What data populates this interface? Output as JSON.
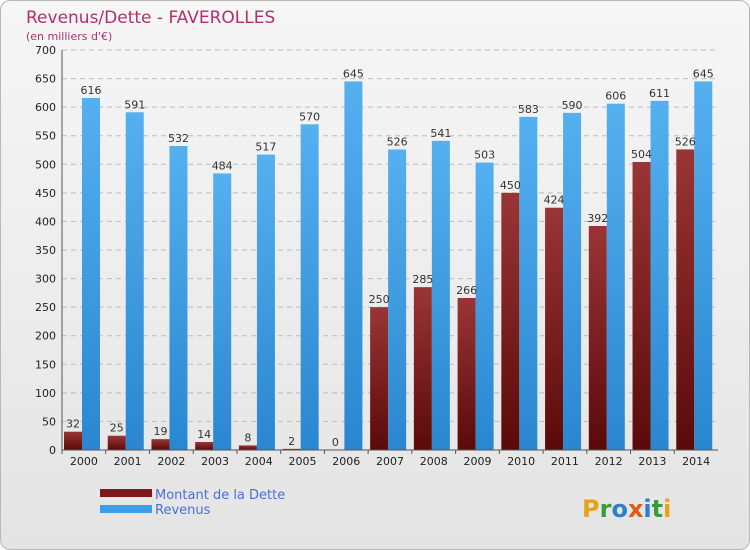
{
  "chart_data": {
    "type": "bar",
    "title": "Revenus/Dette - FAVEROLLES",
    "subtitle": "(en milliers d'€)",
    "categories": [
      "2000",
      "2001",
      "2002",
      "2003",
      "2004",
      "2005",
      "2006",
      "2007",
      "2008",
      "2009",
      "2010",
      "2011",
      "2012",
      "2013",
      "2014"
    ],
    "series": [
      {
        "name": "Montant de la Dette",
        "color": "#7a1a1a",
        "values": [
          32,
          25,
          19,
          14,
          8,
          2,
          0,
          250,
          285,
          266,
          450,
          424,
          392,
          504,
          526
        ]
      },
      {
        "name": "Revenus",
        "color": "#3d9ee6",
        "values": [
          616,
          591,
          532,
          484,
          517,
          570,
          645,
          526,
          541,
          503,
          583,
          590,
          606,
          611,
          645
        ]
      }
    ],
    "ylim": [
      0,
      700
    ],
    "yticks": [
      0,
      50,
      100,
      150,
      200,
      250,
      300,
      350,
      400,
      450,
      500,
      550,
      600,
      650,
      700
    ],
    "grid": true,
    "legend_position": "bottom-left"
  },
  "logo": {
    "text": "Proxiti"
  }
}
